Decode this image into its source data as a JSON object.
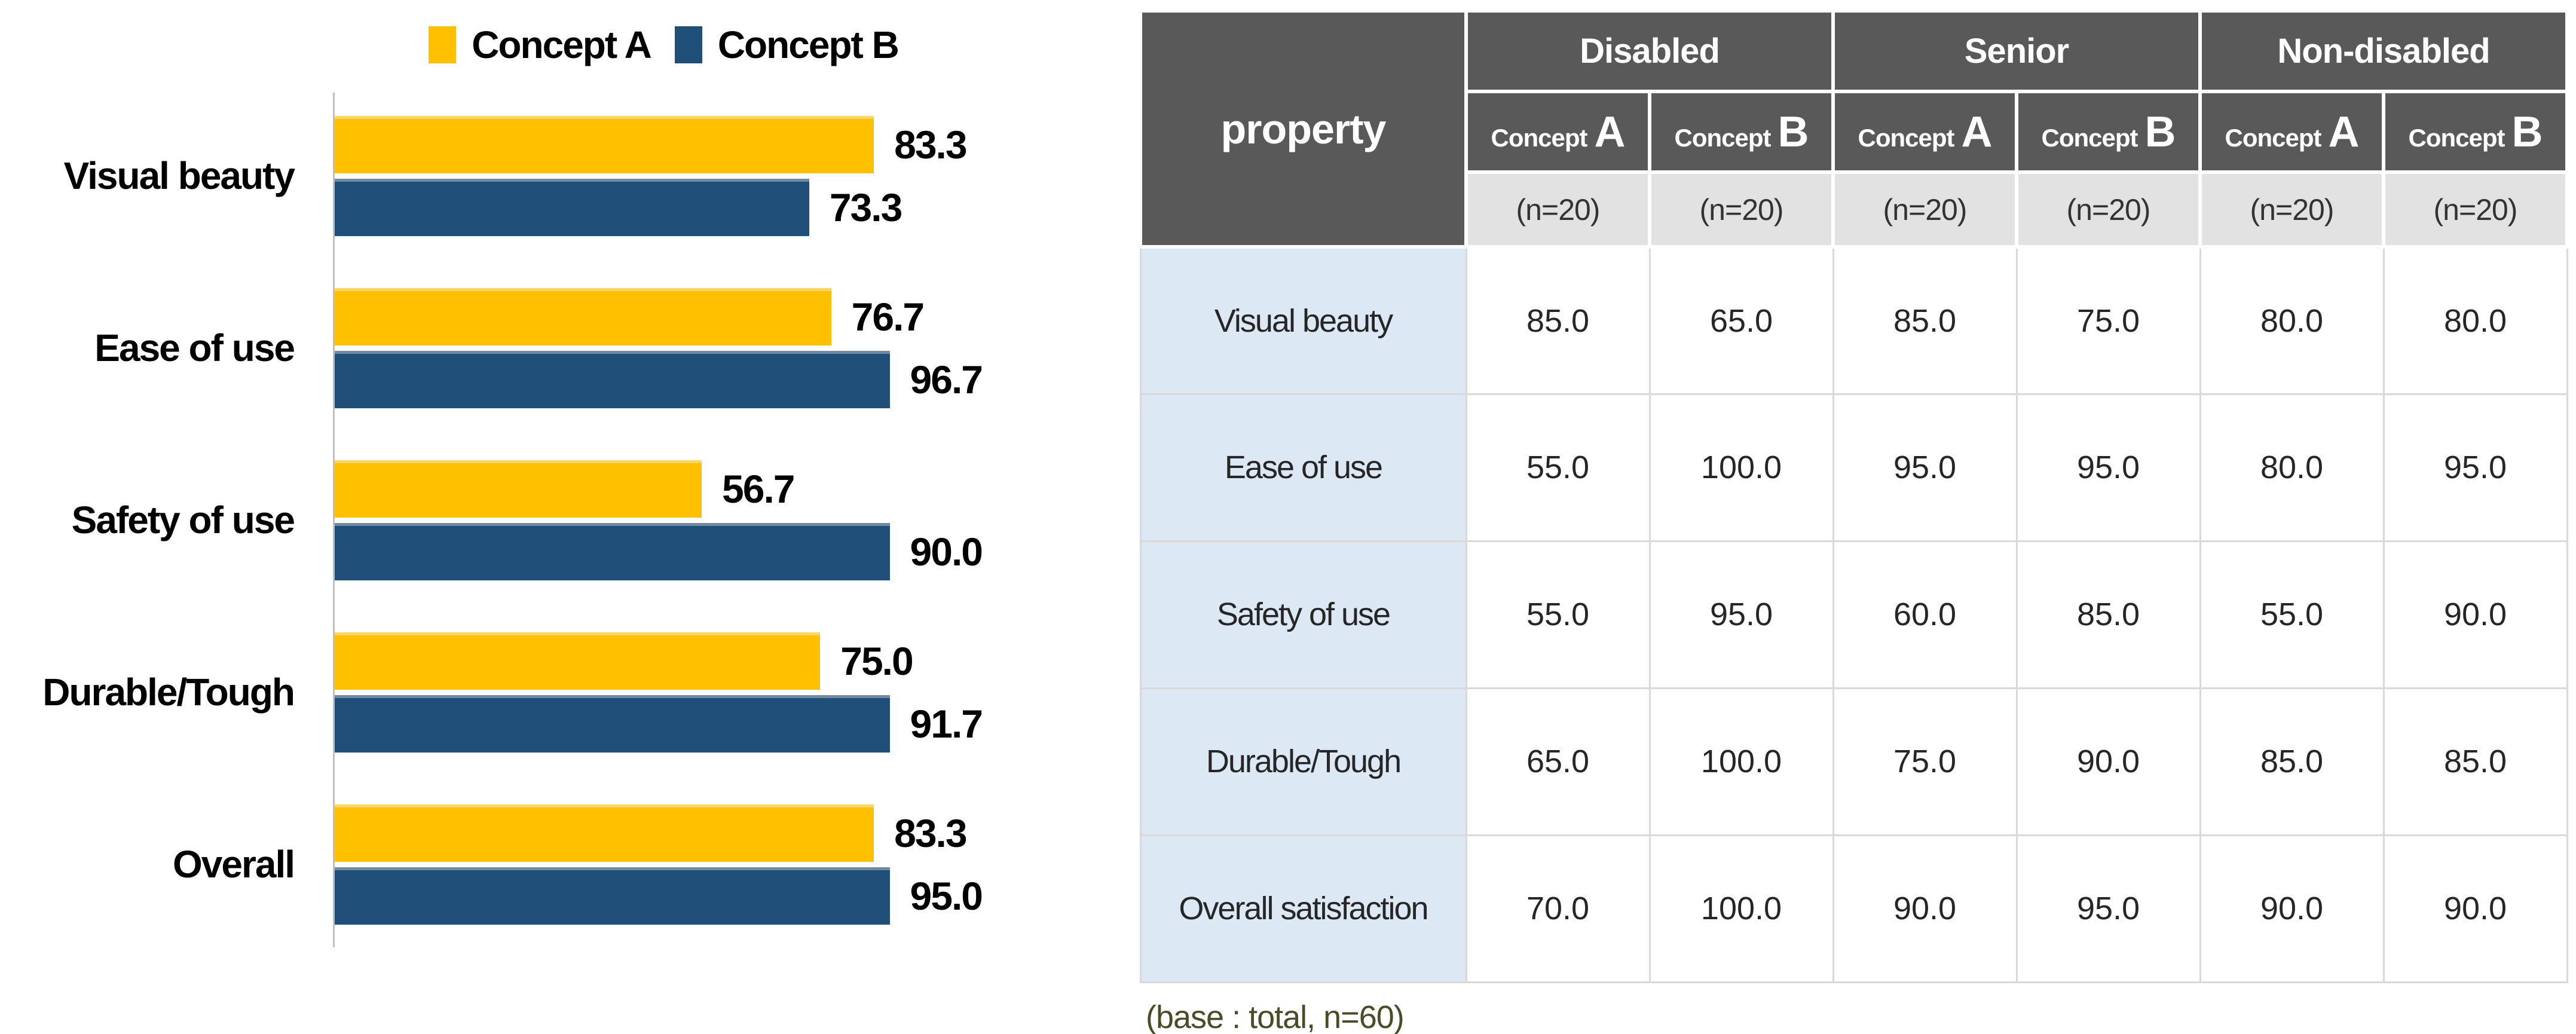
{
  "chart": {
    "chart_data": {
      "type": "bar",
      "orientation": "horizontal",
      "title": "",
      "categories": [
        "Visual beauty",
        "Ease of use",
        "Safety of use",
        "Durable/Tough",
        "Overall"
      ],
      "series": [
        {
          "name": "Concept A",
          "color": "#FFC000",
          "values": [
            83.3,
            76.7,
            56.7,
            75.0,
            83.3
          ]
        },
        {
          "name": "Concept B",
          "color": "#1F4E79",
          "values": [
            73.3,
            96.7,
            90.0,
            91.7,
            95.0
          ]
        }
      ],
      "xlim": [
        0,
        100
      ],
      "value_labels": true,
      "legend_position": "top",
      "grid": false,
      "axis_color": "#BFBFBF"
    }
  },
  "table": {
    "corner_label": "property",
    "groups": [
      {
        "label": "Disabled",
        "concepts": [
          {
            "word": "Concept",
            "letter": "A"
          },
          {
            "word": "Concept",
            "letter": "B"
          }
        ]
      },
      {
        "label": "Senior",
        "concepts": [
          {
            "word": "Concept",
            "letter": "A"
          },
          {
            "word": "Concept",
            "letter": "B"
          }
        ]
      },
      {
        "label": "Non-disabled",
        "concepts": [
          {
            "word": "Concept",
            "letter": "A"
          },
          {
            "word": "Concept",
            "letter": "B"
          }
        ]
      }
    ],
    "n_labels": [
      "(n=20)",
      "(n=20)",
      "(n=20)",
      "(n=20)",
      "(n=20)",
      "(n=20)"
    ],
    "rows": [
      {
        "label": "Visual beauty",
        "values": [
          "85.0",
          "65.0",
          "85.0",
          "75.0",
          "80.0",
          "80.0"
        ]
      },
      {
        "label": "Ease of use",
        "values": [
          "55.0",
          "100.0",
          "95.0",
          "95.0",
          "80.0",
          "95.0"
        ]
      },
      {
        "label": "Safety of use",
        "values": [
          "55.0",
          "95.0",
          "60.0",
          "85.0",
          "55.0",
          "90.0"
        ]
      },
      {
        "label": "Durable/Tough",
        "values": [
          "65.0",
          "100.0",
          "75.0",
          "90.0",
          "85.0",
          "85.0"
        ]
      },
      {
        "label": "Overall satisfaction",
        "values": [
          "70.0",
          "100.0",
          "90.0",
          "95.0",
          "90.0",
          "90.0"
        ]
      }
    ],
    "footnote": "(base : total, n=60)",
    "colors": {
      "header_bg": "#595959",
      "header_text": "#FFFFFF",
      "subheader_bg": "#E2E2E2",
      "rowlabel_bg": "#DCE9F5",
      "grid": "#D9D9D9",
      "footnote_color": "#4C4B25"
    }
  }
}
